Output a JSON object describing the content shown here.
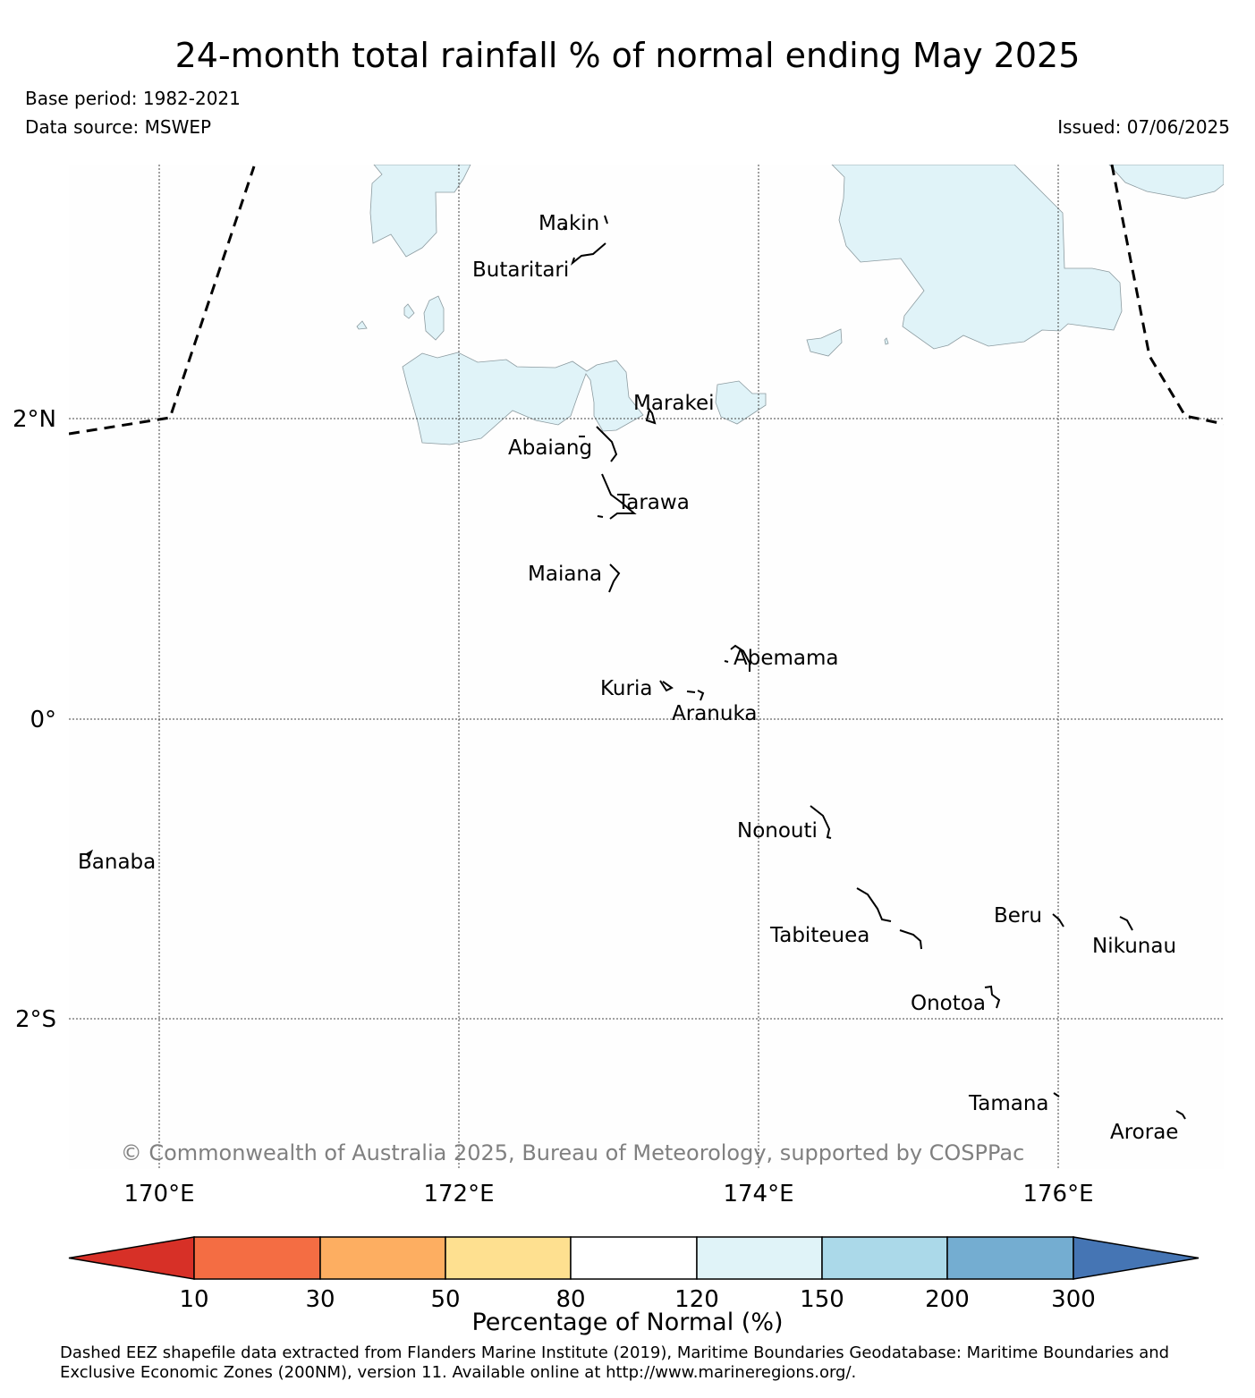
{
  "title": "24-month total rainfall % of normal ending May 2025",
  "base_period": "Base period: 1982-2021",
  "data_source": "Data source: MSWEP",
  "issued": "Issued: 07/06/2025",
  "map": {
    "lat_labels": [
      "2°N",
      "0°",
      "2°S"
    ],
    "lon_labels": [
      "170°E",
      "172°E",
      "174°E",
      "176°E"
    ],
    "places": [
      "Makin",
      "Butaritari",
      "Marakei",
      "Abaiang",
      "Tarawa",
      "Maiana",
      "Abemama",
      "Kuria",
      "Aranuka",
      "Nonouti",
      "Banaba",
      "Beru",
      "Tabiteuea",
      "Nikunau",
      "Onotoa",
      "Tamana",
      "Arorae"
    ],
    "shading_category": "120-150",
    "shading_color": "#e0f3f8",
    "eez_line_style": "dashed"
  },
  "copyright": "© Commonwealth of Australia 2025, Bureau of Meteorology, supported by COSPPac",
  "colorbar": {
    "title": "Percentage of Normal (%)",
    "ticks": [
      "10",
      "30",
      "50",
      "80",
      "120",
      "150",
      "200",
      "300"
    ],
    "colors": [
      "#d73027",
      "#f46d43",
      "#fdae61",
      "#fee090",
      "#ffffff",
      "#e0f3f8",
      "#abd9e9",
      "#74add1",
      "#4575b4"
    ]
  },
  "footnote": [
    "Dashed EEZ shapefile data extracted from Flanders Marine Institute (2019), Maritime Boundaries Geodatabase: Maritime Boundaries and",
    "Exclusive Economic Zones (200NM), version 11. Available online at http://www.marineregions.org/."
  ]
}
